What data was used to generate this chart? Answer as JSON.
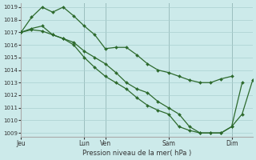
{
  "title": "Pression niveau de la mer( hPa )",
  "bg_color": "#cceaea",
  "grid_color": "#aacfcf",
  "line_color": "#2d6a2d",
  "marker_color": "#2d6a2d",
  "ylim": [
    1009,
    1019
  ],
  "yticks": [
    1009,
    1010,
    1011,
    1012,
    1013,
    1014,
    1015,
    1016,
    1017,
    1018,
    1019
  ],
  "xtick_labels": [
    "Jeu",
    "Lun",
    "Ven",
    "Sam",
    "Dim"
  ],
  "xtick_positions": [
    0,
    24,
    32,
    56,
    80
  ],
  "vlines": [
    24,
    32,
    56,
    80
  ],
  "xlim": [
    0,
    88
  ],
  "line1_x": [
    0,
    4,
    8,
    12,
    16,
    20,
    24,
    28,
    32,
    36,
    40,
    44,
    48,
    52,
    56,
    60,
    64,
    68,
    72,
    76,
    80
  ],
  "line1_y": [
    1017.0,
    1018.2,
    1019.0,
    1018.6,
    1019.0,
    1018.3,
    1017.5,
    1016.8,
    1015.7,
    1015.8,
    1015.8,
    1015.2,
    1014.5,
    1014.0,
    1013.8,
    1013.5,
    1013.2,
    1013.0,
    1013.0,
    1013.3,
    1013.5
  ],
  "line2_x": [
    0,
    4,
    8,
    12,
    16,
    20,
    24,
    28,
    32,
    36,
    40,
    44,
    48,
    52,
    56,
    60,
    64,
    68,
    72,
    76,
    80,
    84,
    88
  ],
  "line2_y": [
    1017.0,
    1017.2,
    1017.1,
    1016.8,
    1016.5,
    1016.2,
    1015.5,
    1015.0,
    1014.5,
    1013.8,
    1013.0,
    1012.5,
    1012.2,
    1011.5,
    1011.0,
    1010.5,
    1009.5,
    1009.0,
    1009.0,
    1009.0,
    1009.5,
    1010.5,
    1013.2
  ],
  "line3_x": [
    0,
    4,
    8,
    12,
    16,
    20,
    24,
    28,
    32,
    36,
    40,
    44,
    48,
    52,
    56,
    60,
    64,
    68,
    72,
    76,
    80,
    84
  ],
  "line3_y": [
    1017.0,
    1017.3,
    1017.5,
    1016.8,
    1016.5,
    1016.0,
    1015.0,
    1014.2,
    1013.5,
    1013.0,
    1012.5,
    1011.8,
    1011.2,
    1010.8,
    1010.5,
    1009.5,
    1009.2,
    1009.0,
    1009.0,
    1009.0,
    1009.5,
    1013.0
  ]
}
